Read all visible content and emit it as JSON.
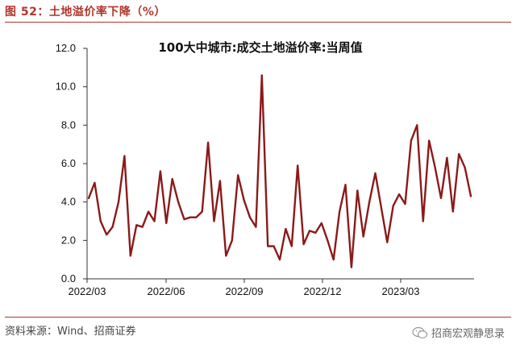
{
  "figure": {
    "label": "图 52：土地溢价率下降（%）",
    "source": "资料来源：Wind、招商证券",
    "brand": "招商宏观静思录",
    "brand_icon": "wechat-icon"
  },
  "colors": {
    "accent": "#b0362a",
    "series": "#8b1a1a"
  },
  "chart_data": {
    "type": "line",
    "title": "100大中城市:成交土地溢价率:当周值",
    "xlabel": "",
    "ylabel": "",
    "ylim": [
      0,
      12
    ],
    "yticks": [
      0,
      2,
      4,
      6,
      8,
      10,
      12
    ],
    "ytick_labels": [
      "0.0",
      "2.0",
      "4.0",
      "6.0",
      "8.0",
      "10.0",
      "12.0"
    ],
    "xtick_labels": [
      "2022/03",
      "2022/06",
      "2022/09",
      "2022/12",
      "2023/03"
    ],
    "grid": false,
    "series": [
      {
        "values": [
          4.2,
          5.0,
          3.0,
          2.3,
          2.7,
          4.0,
          6.4,
          1.2,
          2.8,
          2.7,
          3.5,
          3.0,
          5.6,
          2.9,
          5.2,
          4.0,
          3.1,
          3.2,
          3.2,
          3.5,
          7.1,
          3.0,
          5.1,
          1.2,
          2.0,
          5.4,
          4.1,
          3.2,
          2.7,
          10.6,
          1.7,
          1.7,
          1.0,
          2.6,
          1.7,
          5.9,
          1.8,
          2.5,
          2.4,
          2.9,
          2.0,
          1.0,
          3.5,
          4.9,
          0.6,
          4.6,
          2.2,
          4.0,
          5.5,
          3.7,
          1.9,
          3.8,
          4.4,
          3.9,
          7.2,
          8.0,
          3.0,
          7.2,
          5.8,
          4.2,
          6.3,
          3.5,
          6.5,
          5.8,
          4.3
        ]
      }
    ]
  }
}
